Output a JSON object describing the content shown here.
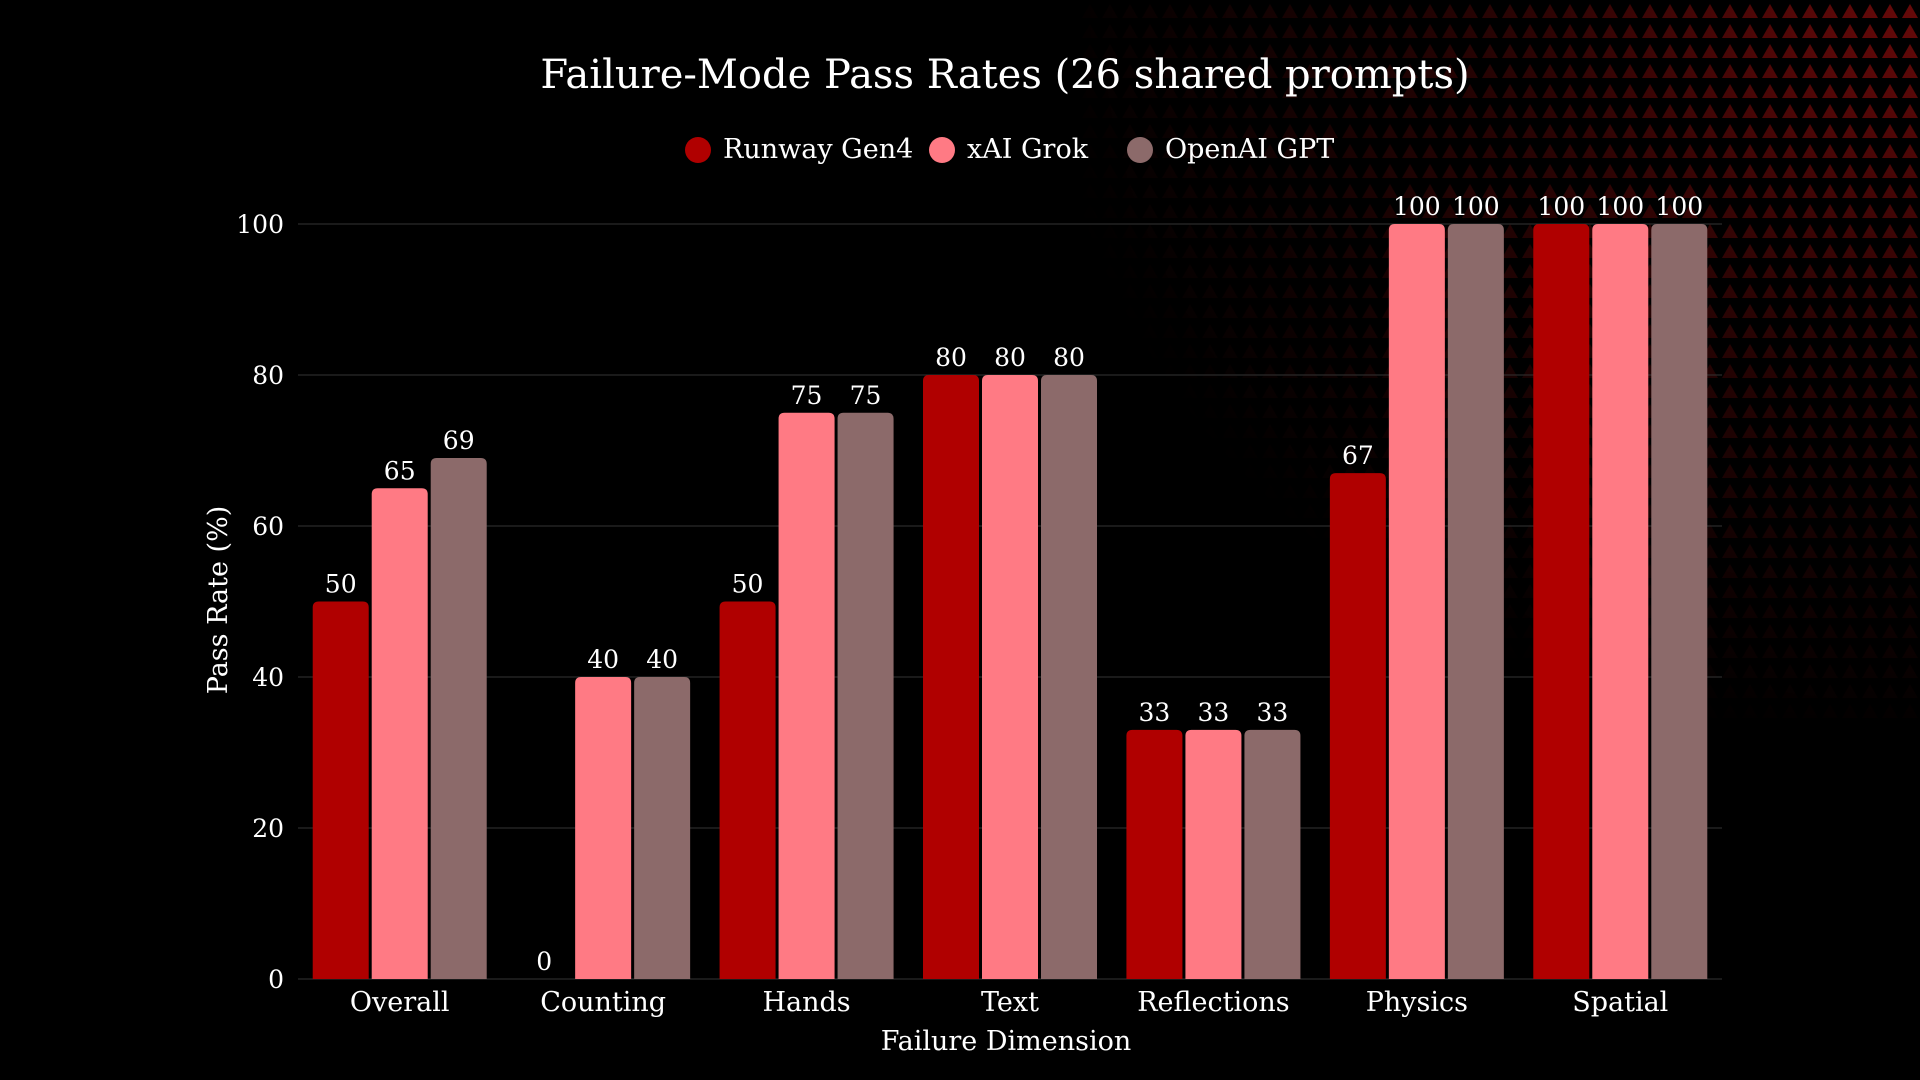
{
  "chart_data": {
    "type": "bar",
    "title": "Failure-Mode Pass Rates (26 shared prompts)",
    "xlabel": "Failure Dimension",
    "ylabel": "Pass Rate (%)",
    "ylim": [
      0,
      100
    ],
    "yticks": [
      0,
      20,
      40,
      60,
      80,
      100
    ],
    "grid": true,
    "legend_position": "top-center",
    "categories": [
      "Overall",
      "Counting",
      "Hands",
      "Text",
      "Reflections",
      "Physics",
      "Spatial"
    ],
    "series": [
      {
        "name": "Runway Gen4",
        "color": "#b00000",
        "values": [
          50,
          0,
          50,
          80,
          33,
          67,
          100
        ]
      },
      {
        "name": "xAI Grok",
        "color": "#ff7a84",
        "values": [
          65,
          40,
          75,
          80,
          33,
          100,
          100
        ]
      },
      {
        "name": "OpenAI GPT",
        "color": "#8c6a6a",
        "values": [
          69,
          40,
          75,
          80,
          33,
          100,
          100
        ]
      }
    ]
  },
  "colors": {
    "background": "#000000",
    "gridline": "#333333",
    "text": "#ffffff",
    "texture": "#7a0b0b"
  }
}
